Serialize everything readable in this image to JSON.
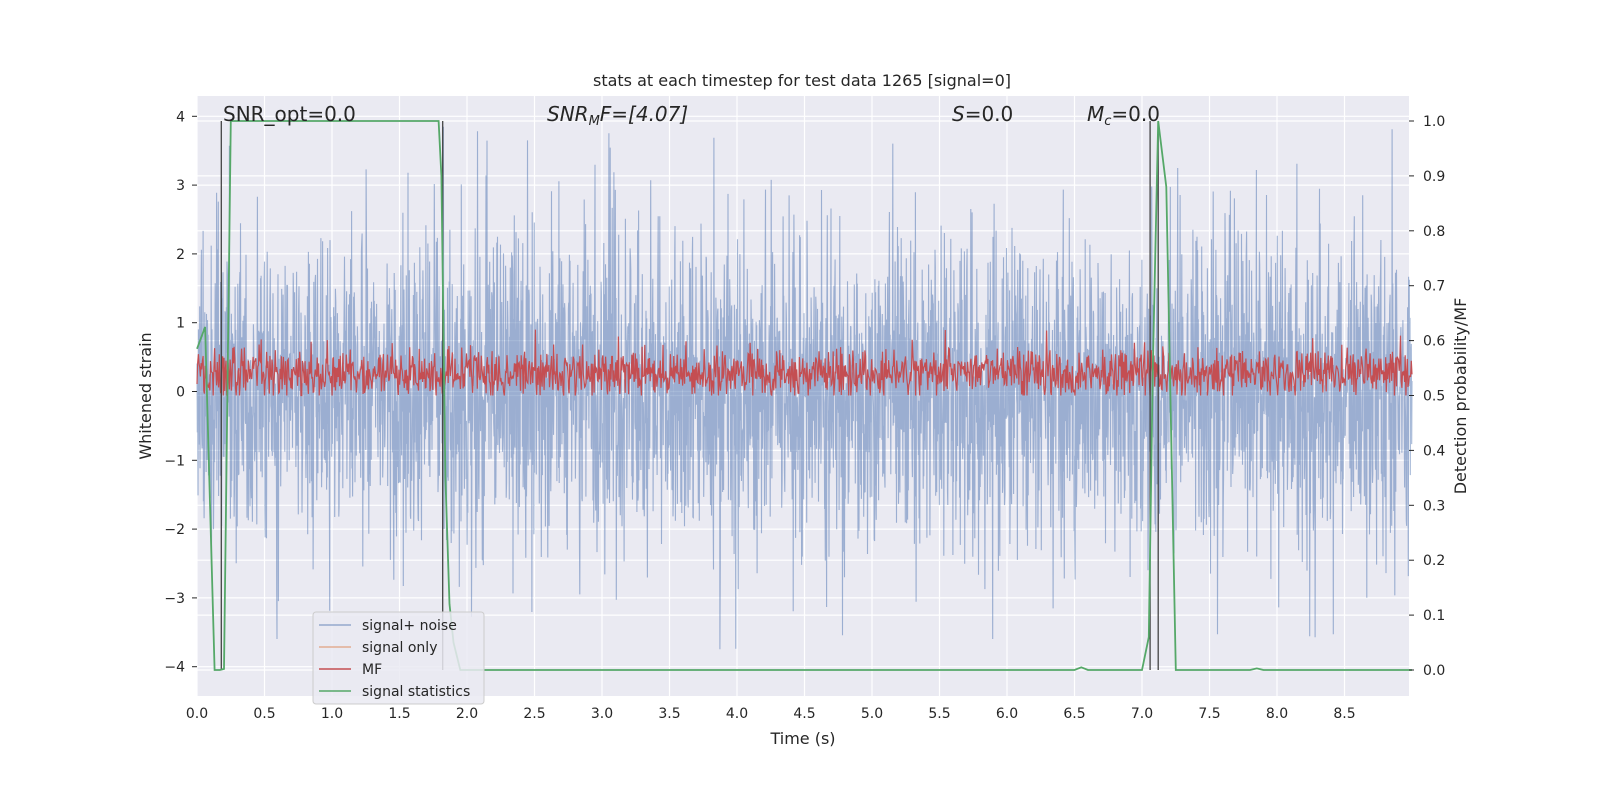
{
  "chart_data": {
    "type": "line",
    "title": "stats at each timestep for test data 1265 [signal=0]",
    "xlabel": "Time (s)",
    "ylabel": "Whitened strain",
    "y2label": "Detection probability/MF",
    "xlim": [
      0.0,
      9.0
    ],
    "ylim": [
      -4.4,
      4.3
    ],
    "y2lim": [
      -0.045,
      1.045
    ],
    "xticks": [
      "0.0",
      "0.5",
      "1.0",
      "1.5",
      "2.0",
      "2.5",
      "3.0",
      "3.5",
      "4.0",
      "4.5",
      "5.0",
      "5.5",
      "6.0",
      "6.5",
      "7.0",
      "7.5",
      "8.0",
      "8.5"
    ],
    "yticks": [
      "4",
      "3",
      "2",
      "1",
      "0",
      "−1",
      "−2",
      "−3",
      "−4"
    ],
    "y2ticks": [
      "1.0",
      "0.9",
      "0.8",
      "0.7",
      "0.6",
      "0.5",
      "0.4",
      "0.3",
      "0.2",
      "0.1",
      "0.0"
    ],
    "grid": true,
    "legend_position": "lower-left",
    "annotations": {
      "snr_opt": "SNR_opt=0.0",
      "snr_mf_main": "SNR",
      "snr_mf_sub": "M",
      "snr_mf_rest": "F=[4.07]",
      "s_main": "S",
      "s_rest": "=0.0",
      "mc_main": "M",
      "mc_sub": "c",
      "mc_rest": "=0.0"
    },
    "series": [
      {
        "name": "signal+ noise",
        "color": "#4c72b0",
        "axis": "left",
        "description_values": {
          "envelope_upper": 3.9,
          "envelope_lower": -4.0,
          "typical_range": [
            -2.0,
            2.2
          ]
        }
      },
      {
        "name": "signal only",
        "color": "#dd8452",
        "axis": "left",
        "values": []
      },
      {
        "name": "MF",
        "color": "#c44e52",
        "axis": "right",
        "description_values": {
          "mean": 0.54,
          "range": [
            0.5,
            0.62
          ]
        }
      },
      {
        "name": "signal statistics",
        "color": "#55a868",
        "axis": "right",
        "x": [
          0.0,
          0.06,
          0.1,
          0.13,
          0.17,
          0.2,
          0.25,
          0.3,
          1.0,
          1.79,
          1.81,
          1.84,
          1.87,
          1.9,
          1.95,
          2.0,
          6.5,
          6.55,
          6.6,
          7.0,
          7.05,
          7.08,
          7.12,
          7.18,
          7.25,
          7.8,
          7.85,
          7.9,
          9.0
        ],
        "values": [
          0.585,
          0.625,
          0.27,
          0.0,
          0.0,
          0.002,
          1.0,
          1.0,
          1.0,
          1.0,
          0.9,
          0.35,
          0.12,
          0.05,
          0.0,
          0.0,
          0.0,
          0.005,
          0.0,
          0.0,
          0.06,
          0.55,
          1.0,
          0.88,
          0.0,
          0.0,
          0.003,
          0.0,
          0.0
        ]
      }
    ],
    "vlines_x": [
      0.18,
      1.82,
      7.06,
      7.12
    ]
  }
}
